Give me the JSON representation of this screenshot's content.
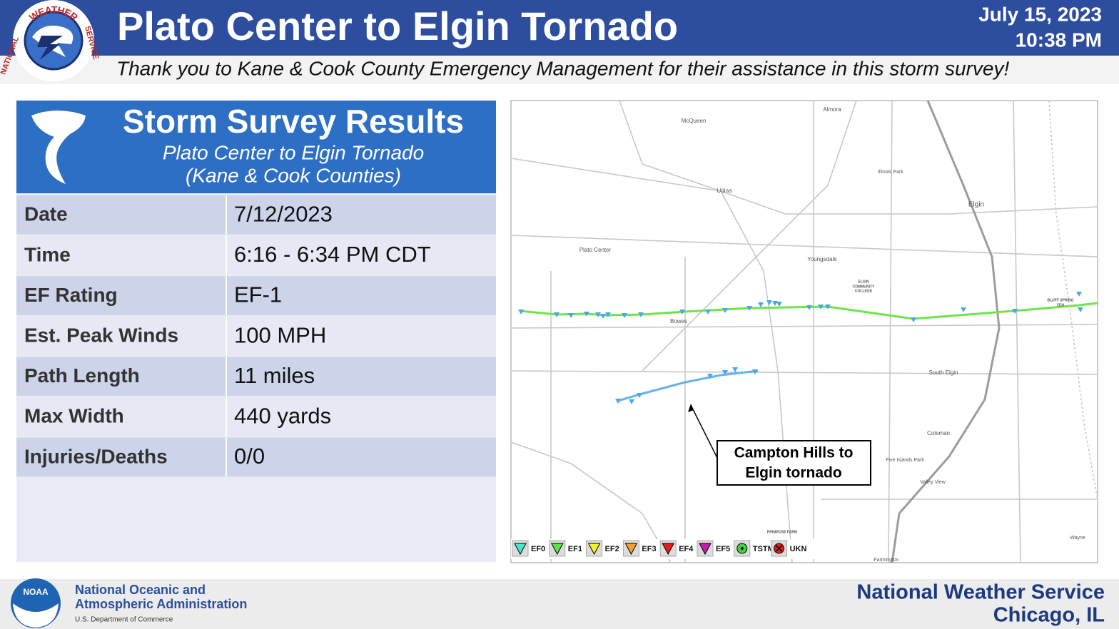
{
  "header": {
    "title": "Plato Center to Elgin Tornado",
    "date": "July 15, 2023",
    "time": "10:38 PM",
    "subtitle": "Thank you to Kane & Cook County Emergency Management for their assistance in this storm survey!"
  },
  "nws_logo": {
    "top": "WEATHER",
    "left": "NATIONAL",
    "right": "SERVICE"
  },
  "panel": {
    "title": "Storm Survey Results",
    "subtitle_lines": [
      "Plato Center to Elgin Tornado",
      "(Kane & Cook Counties)"
    ]
  },
  "table": {
    "rows": [
      [
        "Date",
        "7/12/2023"
      ],
      [
        "Time",
        "6:16 - 6:34 PM CDT"
      ],
      [
        "EF Rating",
        "EF-1"
      ],
      [
        "Est. Peak Winds",
        "100 MPH"
      ],
      [
        "Path Length",
        "11 miles"
      ],
      [
        "Max Width",
        "440 yards"
      ],
      [
        "Injuries/Deaths",
        "0/0"
      ]
    ]
  },
  "map": {
    "places": [
      "McQueen",
      "Almora",
      "Illinois Park",
      "Udina",
      "Elgin",
      "Plato Center",
      "Youngsdale",
      "ELGIN",
      "COMMUNITY",
      "COLLEGE",
      "BLUFF SPRING",
      "FEN",
      "Bowes",
      "South Elgin",
      "Coleman",
      "Five Islands Park",
      "Valley View",
      "PRIMROSE FARM",
      "Wayne",
      "Farmington"
    ],
    "callout_lines": [
      "Campton Hills to",
      "Elgin tornado"
    ],
    "legend": [
      "EF0",
      "EF1",
      "EF2",
      "EF3",
      "EF4",
      "EF5",
      "TSTM",
      "UKN"
    ]
  },
  "footer": {
    "noaa_logo": "NOAA",
    "org_lines": [
      "National Oceanic and",
      "Atmospheric Administration"
    ],
    "department": "U.S. Department of Commerce",
    "office_lines": [
      "National Weather Service",
      "Chicago, IL"
    ]
  }
}
